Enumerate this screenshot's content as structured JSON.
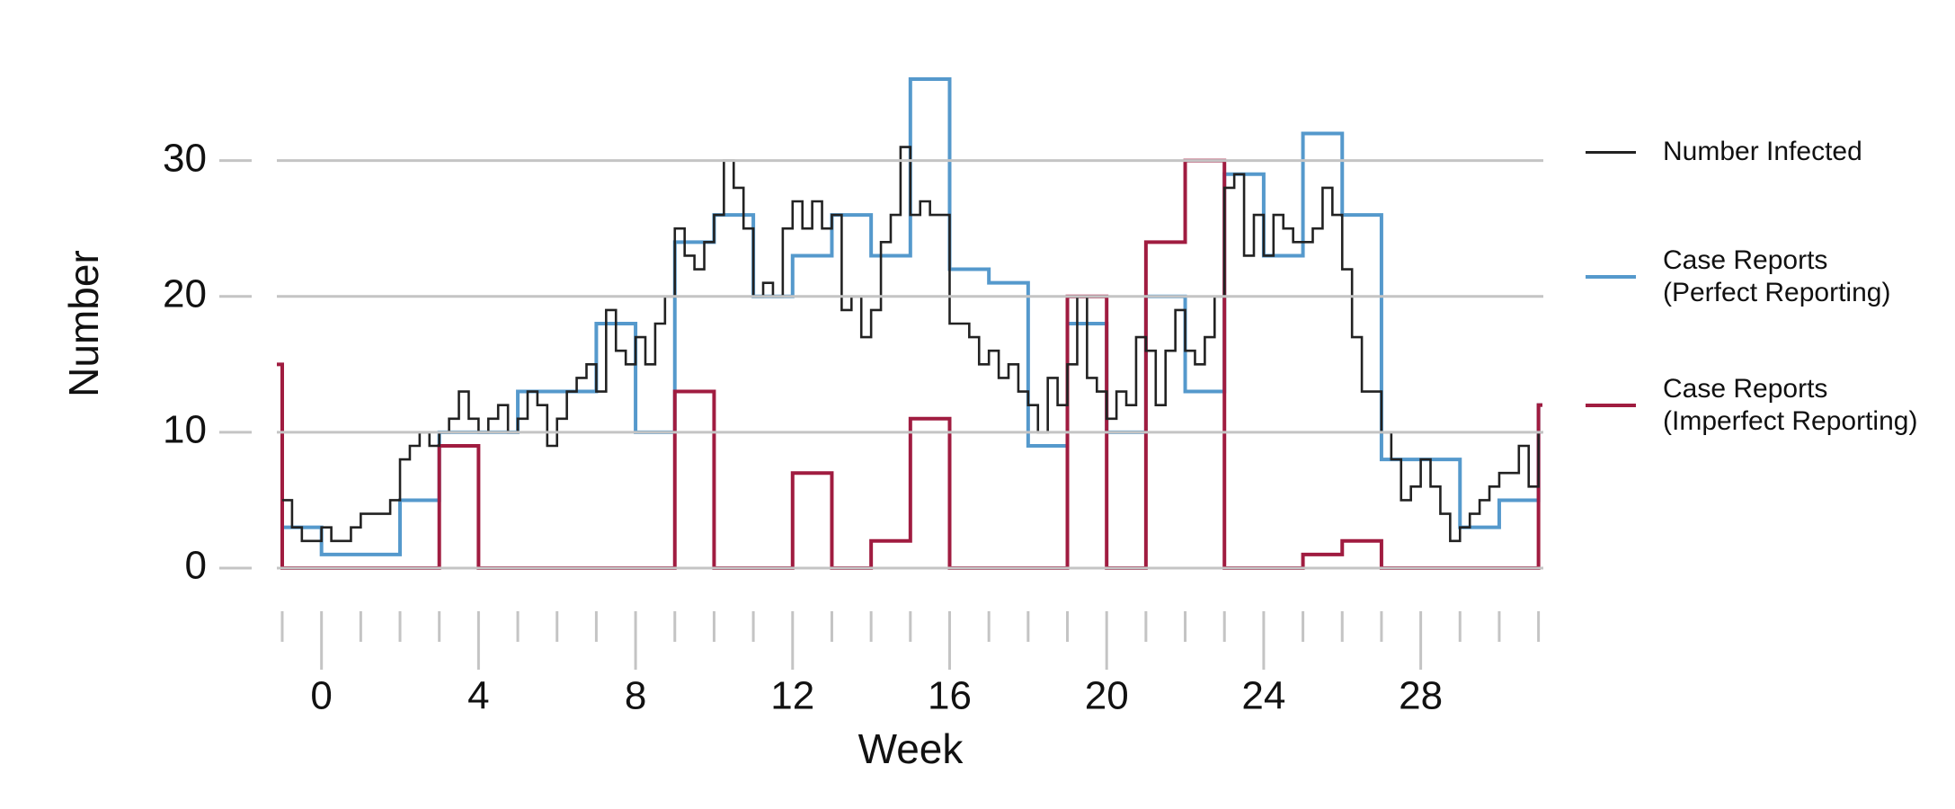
{
  "chart_data": {
    "type": "step",
    "x_label": "Week",
    "y_label": "Number",
    "xlim": [
      -1,
      31.1
    ],
    "ylim": [
      0,
      36
    ],
    "xticks": [
      0,
      4,
      8,
      12,
      16,
      20,
      24,
      28
    ],
    "xminorticks": [
      -1,
      1,
      2,
      3,
      5,
      6,
      7,
      9,
      10,
      11,
      13,
      14,
      15,
      17,
      18,
      19,
      21,
      22,
      23,
      25,
      26,
      27,
      29,
      30,
      31
    ],
    "yticks": [
      0,
      10,
      20,
      30
    ],
    "grid": true,
    "legend": "right",
    "series": [
      {
        "name": "Number Infected",
        "color": "#222222",
        "x": [
          -1,
          -0.75,
          -0.5,
          -0.25,
          0,
          0.25,
          0.5,
          0.75,
          1,
          1.25,
          1.5,
          1.75,
          2,
          2.25,
          2.5,
          2.75,
          3,
          3.25,
          3.5,
          3.75,
          4,
          4.25,
          4.5,
          4.75,
          5,
          5.25,
          5.5,
          5.75,
          6,
          6.25,
          6.5,
          6.75,
          7,
          7.25,
          7.5,
          7.75,
          8,
          8.25,
          8.5,
          8.75,
          9,
          9.25,
          9.5,
          9.75,
          10,
          10.25,
          10.5,
          10.75,
          11,
          11.25,
          11.5,
          11.75,
          12,
          12.25,
          12.5,
          12.75,
          13,
          13.25,
          13.5,
          13.75,
          14,
          14.25,
          14.5,
          14.75,
          15,
          15.25,
          15.5,
          15.75,
          16,
          16.25,
          16.5,
          16.75,
          17,
          17.25,
          17.5,
          17.75,
          18,
          18.25,
          18.5,
          18.75,
          19,
          19.25,
          19.5,
          19.75,
          20,
          20.25,
          20.5,
          20.75,
          21,
          21.25,
          21.5,
          21.75,
          22,
          22.25,
          22.5,
          22.75,
          23,
          23.25,
          23.5,
          23.75,
          24,
          24.25,
          24.5,
          24.75,
          25,
          25.25,
          25.5,
          25.75,
          26,
          26.25,
          26.5,
          26.75,
          27,
          27.25,
          27.5,
          27.75,
          28,
          28.25,
          28.5,
          28.75,
          29,
          29.25,
          29.5,
          29.75,
          30,
          30.25,
          30.5,
          30.75,
          31
        ],
        "values": [
          5,
          3,
          2,
          2,
          3,
          2,
          2,
          3,
          4,
          4,
          4,
          5,
          8,
          9,
          10,
          9,
          10,
          11,
          13,
          11,
          10,
          11,
          12,
          10,
          11,
          13,
          12,
          9,
          11,
          13,
          14,
          15,
          13,
          19,
          16,
          15,
          17,
          15,
          18,
          20,
          25,
          23,
          22,
          24,
          26,
          30,
          28,
          25,
          20,
          21,
          20,
          25,
          27,
          25,
          27,
          25,
          26,
          19,
          20,
          17,
          19,
          24,
          26,
          31,
          26,
          27,
          26,
          26,
          18,
          18,
          17,
          15,
          16,
          14,
          15,
          13,
          12,
          10,
          14,
          12,
          15,
          20,
          14,
          13,
          11,
          13,
          12,
          17,
          16,
          12,
          16,
          19,
          16,
          15,
          17,
          20,
          28,
          29,
          23,
          26,
          23,
          26,
          25,
          24,
          24,
          25,
          28,
          26,
          22,
          17,
          13,
          13,
          10,
          8,
          5,
          6,
          8,
          6,
          4,
          2,
          3,
          4,
          5,
          6,
          7,
          7,
          9,
          6,
          10
        ]
      },
      {
        "name": "Case Reports\n(Perfect Reporting)",
        "color": "#5599cc",
        "x": [
          -1,
          0,
          1,
          2,
          3,
          4,
          5,
          6,
          7,
          8,
          9,
          10,
          11,
          12,
          13,
          14,
          15,
          16,
          17,
          18,
          19,
          20,
          21,
          22,
          23,
          24,
          25,
          26,
          27,
          28,
          29,
          30,
          31
        ],
        "values": [
          3,
          1,
          1,
          5,
          10,
          10,
          13,
          13,
          18,
          10,
          24,
          26,
          20,
          23,
          26,
          23,
          36,
          22,
          21,
          9,
          18,
          10,
          20,
          13,
          29,
          23,
          32,
          26,
          8,
          8,
          3,
          5,
          12
        ]
      },
      {
        "name": "Case Reports\n(Imperfect Reporting)",
        "color": "#a01c40",
        "x": [
          -2,
          -1,
          0,
          1,
          2,
          3,
          4,
          5,
          6,
          7,
          8,
          9,
          10,
          11,
          12,
          13,
          14,
          15,
          16,
          17,
          18,
          19,
          20,
          21,
          22,
          23,
          24,
          25,
          26,
          27,
          28,
          29,
          30,
          31
        ],
        "values": [
          15,
          0,
          0,
          0,
          0,
          9,
          0,
          0,
          0,
          0,
          0,
          13,
          0,
          0,
          7,
          0,
          2,
          11,
          0,
          0,
          0,
          20,
          0,
          24,
          30,
          0,
          0,
          1,
          2,
          0,
          0,
          0,
          0,
          12
        ]
      }
    ]
  }
}
